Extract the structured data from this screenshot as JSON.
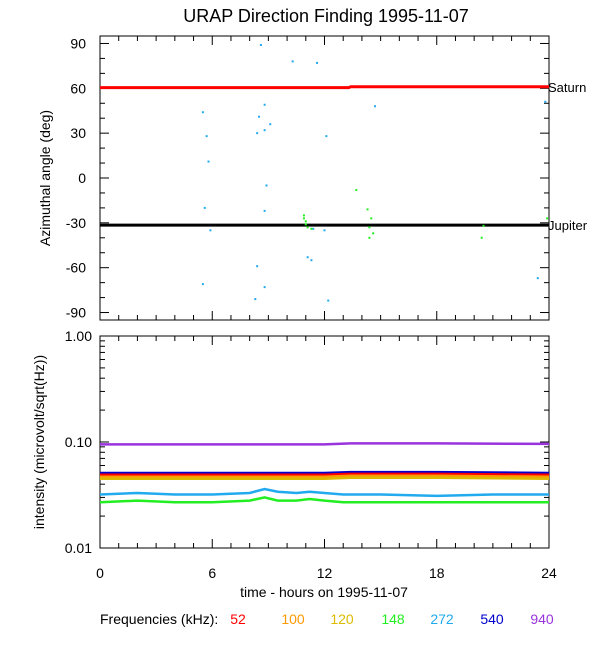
{
  "title": "URAP Direction Finding  1995-11-07",
  "frequencies_label": "Frequencies (kHz):",
  "frequencies": [
    {
      "label": "52",
      "color": "#ff0000"
    },
    {
      "label": "100",
      "color": "#ff9900"
    },
    {
      "label": "120",
      "color": "#ddbb00"
    },
    {
      "label": "148",
      "color": "#22ee22"
    },
    {
      "label": "272",
      "color": "#22aaee"
    },
    {
      "label": "540",
      "color": "#0000cc"
    },
    {
      "label": "940",
      "color": "#9933dd"
    }
  ],
  "chart_data": [
    {
      "type": "scatter",
      "title": "URAP Direction Finding  1995-11-07",
      "ylabel": "Azimuthal angle (deg)",
      "xlabel": "",
      "xlim": [
        0,
        24
      ],
      "ylim": [
        -95,
        95
      ],
      "yticks": [
        "90",
        "60",
        "30",
        "0",
        "-30",
        "-60",
        "-90"
      ],
      "reference_lines": [
        {
          "label": "Saturn",
          "color": "#ff0000",
          "points": [
            [
              0,
              60.5
            ],
            [
              13.3,
              60.5
            ],
            [
              13.4,
              61
            ],
            [
              24,
              61
            ]
          ]
        },
        {
          "label": "Jupiter",
          "color": "#000000",
          "points": [
            [
              0,
              -31.5
            ],
            [
              24,
              -31.5
            ]
          ]
        }
      ],
      "series": [
        {
          "freq": "272",
          "color": "#22aaee",
          "points": [
            [
              8.6,
              89
            ],
            [
              8.8,
              49
            ],
            [
              9.1,
              36
            ],
            [
              8.8,
              32
            ],
            [
              8.5,
              41
            ],
            [
              8.4,
              30
            ],
            [
              5.5,
              44
            ],
            [
              5.7,
              28
            ],
            [
              5.8,
              11
            ],
            [
              5.6,
              -20
            ],
            [
              5.9,
              -35
            ],
            [
              8.9,
              -5
            ],
            [
              8.8,
              -22
            ],
            [
              10.3,
              78
            ],
            [
              11.6,
              77
            ],
            [
              12.1,
              28
            ],
            [
              14.7,
              48
            ],
            [
              8.4,
              -59
            ],
            [
              8.8,
              -73
            ],
            [
              8.3,
              -81
            ],
            [
              5.5,
              -71
            ],
            [
              11.1,
              -53
            ],
            [
              11.3,
              -55
            ],
            [
              11.4,
              -34
            ],
            [
              12.0,
              -35
            ],
            [
              12.2,
              -82
            ],
            [
              23.8,
              51
            ],
            [
              23.4,
              -67
            ]
          ]
        },
        {
          "freq": "148",
          "color": "#22ee22",
          "points": [
            [
              10.9,
              -25
            ],
            [
              10.9,
              -27
            ],
            [
              11.0,
              -29
            ],
            [
              11.0,
              -31
            ],
            [
              11.1,
              -33
            ],
            [
              11.3,
              -34
            ],
            [
              13.7,
              -8
            ],
            [
              14.3,
              -21
            ],
            [
              14.5,
              -27
            ],
            [
              14.4,
              -33
            ],
            [
              14.6,
              -37
            ],
            [
              14.4,
              -40
            ],
            [
              20.5,
              -32
            ],
            [
              20.4,
              -40
            ],
            [
              23.9,
              -27
            ]
          ]
        }
      ]
    },
    {
      "type": "line",
      "ylabel": "intensity (microvolt/sqrt(Hz))",
      "xlabel": "time - hours on 1995-11-07",
      "xlim": [
        0,
        24
      ],
      "ylim": [
        0.01,
        1.0
      ],
      "log_y": true,
      "yticks": [
        "1.00",
        "0.10",
        "0.01"
      ],
      "xticks": [
        "0",
        "6",
        "12",
        "18",
        "24"
      ],
      "series": [
        {
          "freq": "940",
          "color": "#9933dd",
          "x": [
            0,
            6,
            12,
            13.4,
            18,
            24
          ],
          "y": [
            0.095,
            0.095,
            0.095,
            0.097,
            0.097,
            0.096
          ]
        },
        {
          "freq": "540",
          "color": "#0000cc",
          "x": [
            0,
            6,
            12,
            13.4,
            18,
            24
          ],
          "y": [
            0.051,
            0.051,
            0.051,
            0.052,
            0.052,
            0.051
          ]
        },
        {
          "freq": "52",
          "color": "#ff0000",
          "x": [
            0,
            6,
            12,
            13.4,
            18,
            24
          ],
          "y": [
            0.049,
            0.049,
            0.049,
            0.05,
            0.05,
            0.049
          ]
        },
        {
          "freq": "100",
          "color": "#ff9900",
          "x": [
            0,
            6,
            12,
            13.4,
            18,
            24
          ],
          "y": [
            0.047,
            0.047,
            0.047,
            0.048,
            0.048,
            0.047
          ]
        },
        {
          "freq": "120",
          "color": "#ddbb00",
          "x": [
            0,
            6,
            12,
            13.4,
            18,
            24
          ],
          "y": [
            0.045,
            0.045,
            0.045,
            0.046,
            0.046,
            0.045
          ]
        },
        {
          "freq": "272",
          "color": "#22aaee",
          "x": [
            0,
            2,
            4,
            6,
            8,
            8.8,
            9.5,
            10.5,
            11.2,
            12,
            13,
            15,
            18,
            21,
            24
          ],
          "y": [
            0.032,
            0.033,
            0.032,
            0.032,
            0.033,
            0.036,
            0.034,
            0.033,
            0.034,
            0.033,
            0.032,
            0.032,
            0.031,
            0.032,
            0.032
          ]
        },
        {
          "freq": "148",
          "color": "#22ee22",
          "x": [
            0,
            2,
            4,
            6,
            8,
            8.8,
            9.5,
            10.5,
            11.2,
            12,
            13,
            15,
            18,
            21,
            24
          ],
          "y": [
            0.027,
            0.028,
            0.027,
            0.027,
            0.028,
            0.03,
            0.028,
            0.028,
            0.029,
            0.028,
            0.027,
            0.027,
            0.027,
            0.027,
            0.027
          ]
        }
      ]
    }
  ]
}
